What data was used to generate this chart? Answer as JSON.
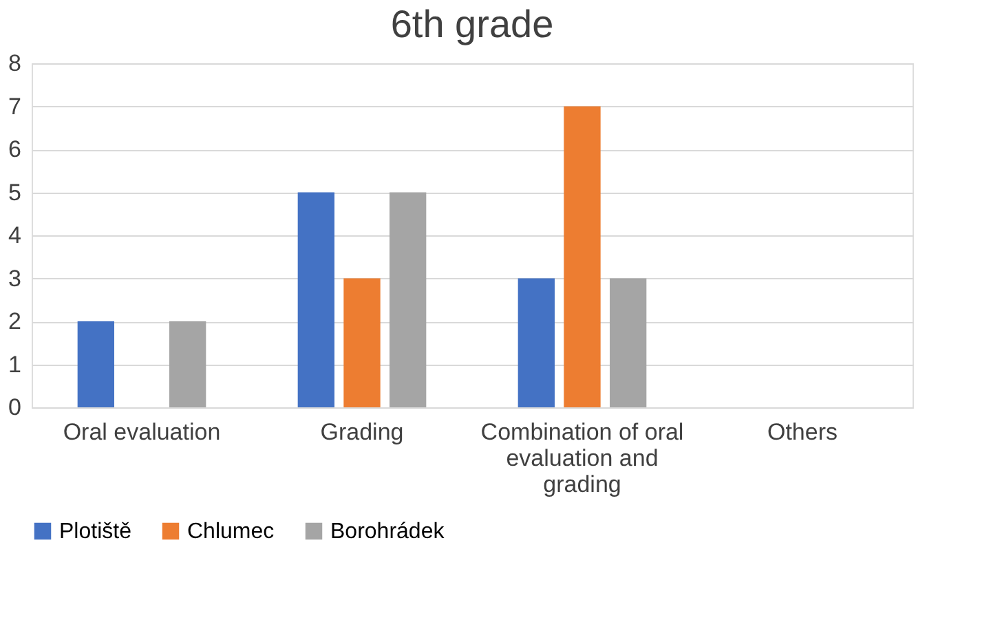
{
  "chart_data": {
    "type": "bar",
    "title": "6th grade",
    "categories": [
      "Oral evaluation",
      "Grading",
      "Combination of oral evaluation and grading",
      "Others"
    ],
    "series": [
      {
        "name": "Plotiště",
        "color": "#4472c4",
        "values": [
          2,
          5,
          3,
          0
        ]
      },
      {
        "name": "Chlumec",
        "color": "#ed7d31",
        "values": [
          0,
          3,
          7,
          0
        ]
      },
      {
        "name": "Borohrádek",
        "color": "#a5a5a5",
        "values": [
          2,
          5,
          3,
          0
        ]
      }
    ],
    "ylim": [
      0,
      8
    ],
    "yticks": [
      0,
      1,
      2,
      3,
      4,
      5,
      6,
      7,
      8
    ],
    "grid": "y",
    "legend": "bottom"
  }
}
